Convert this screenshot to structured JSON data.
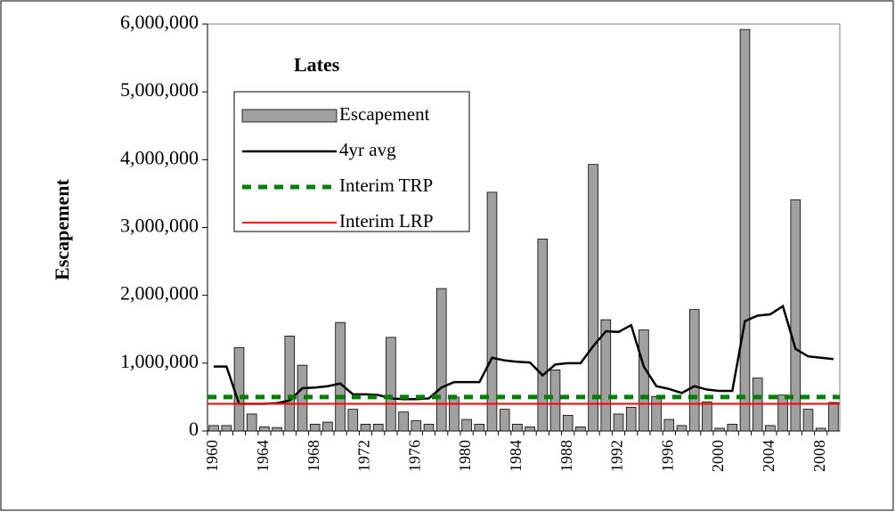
{
  "chart_data": {
    "type": "bar_line",
    "title": "Lates",
    "y_label": "Escapement",
    "x": [
      1960,
      1961,
      1962,
      1963,
      1964,
      1965,
      1966,
      1967,
      1968,
      1969,
      1970,
      1971,
      1972,
      1973,
      1974,
      1975,
      1976,
      1977,
      1978,
      1979,
      1980,
      1981,
      1982,
      1983,
      1984,
      1985,
      1986,
      1987,
      1988,
      1989,
      1990,
      1991,
      1992,
      1993,
      1994,
      1995,
      1996,
      1997,
      1998,
      1999,
      2000,
      2001,
      2002,
      2003,
      2004,
      2005,
      2006,
      2007,
      2008,
      2009
    ],
    "xticks": [
      1960,
      1964,
      1968,
      1972,
      1976,
      1980,
      1984,
      1988,
      1992,
      1996,
      2000,
      2004,
      2008
    ],
    "series": [
      {
        "name": "Escapement",
        "kind": "bar",
        "color": "#a0a0a0",
        "values": [
          80000,
          80000,
          1230000,
          250000,
          60000,
          50000,
          1400000,
          970000,
          100000,
          130000,
          1600000,
          320000,
          100000,
          100000,
          1380000,
          280000,
          150000,
          100000,
          2100000,
          500000,
          170000,
          100000,
          3520000,
          320000,
          100000,
          60000,
          2830000,
          900000,
          230000,
          60000,
          3930000,
          1640000,
          250000,
          350000,
          1490000,
          510000,
          170000,
          80000,
          1790000,
          430000,
          40000,
          100000,
          5920000,
          780000,
          80000,
          530000,
          3410000,
          320000,
          40000,
          420000
        ]
      },
      {
        "name": "4yr avg",
        "kind": "line",
        "color": "#000000",
        "values": [
          950000,
          950000,
          400000,
          400000,
          400000,
          410000,
          450000,
          630000,
          640000,
          660000,
          700000,
          540000,
          540000,
          530000,
          480000,
          470000,
          470000,
          480000,
          640000,
          720000,
          720000,
          720000,
          1080000,
          1040000,
          1020000,
          1010000,
          820000,
          980000,
          1000000,
          1000000,
          1250000,
          1470000,
          1460000,
          1560000,
          950000,
          660000,
          620000,
          560000,
          660000,
          610000,
          590000,
          590000,
          1620000,
          1700000,
          1720000,
          1840000,
          1210000,
          1100000,
          1080000,
          1060000
        ]
      },
      {
        "name": "Interim TRP",
        "kind": "hline",
        "dashed": true,
        "color": "#008000",
        "value": 500000
      },
      {
        "name": "Interim LRP",
        "kind": "hline",
        "dashed": false,
        "color": "#ff0000",
        "value": 400000
      }
    ],
    "ylim": [
      0,
      6000000
    ],
    "yticks": [
      0,
      {
        "value": 1000000,
        "label": "1,000,000"
      },
      {
        "value": 2000000,
        "label": "2,000,000"
      },
      {
        "value": 3000000,
        "label": "3,000,000"
      },
      {
        "value": 4000000,
        "label": "4,000,000"
      },
      {
        "value": 5000000,
        "label": "5,000,000"
      },
      {
        "value": 6000000,
        "label": "6,000,000"
      }
    ]
  }
}
